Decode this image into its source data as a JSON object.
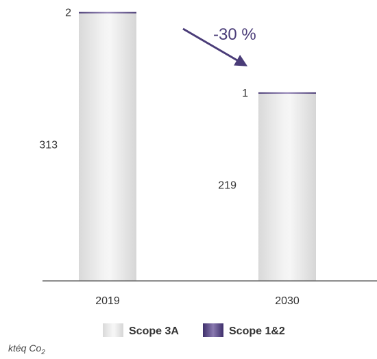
{
  "chart_data": {
    "type": "bar",
    "stacked": true,
    "categories": [
      "2019",
      "2030"
    ],
    "series": [
      {
        "name": "Scope 3A",
        "values": [
          313,
          219
        ],
        "color": "#e2e2e2"
      },
      {
        "name": "Scope 1&2",
        "values": [
          2,
          1
        ],
        "color": "#5b4a8a"
      }
    ],
    "annotation": {
      "text": "-30 %",
      "from": "2019",
      "to": "2030"
    },
    "legend_position": "bottom",
    "grid": false
  },
  "unit_label": {
    "main": "ktéq Co",
    "sub": "2"
  }
}
